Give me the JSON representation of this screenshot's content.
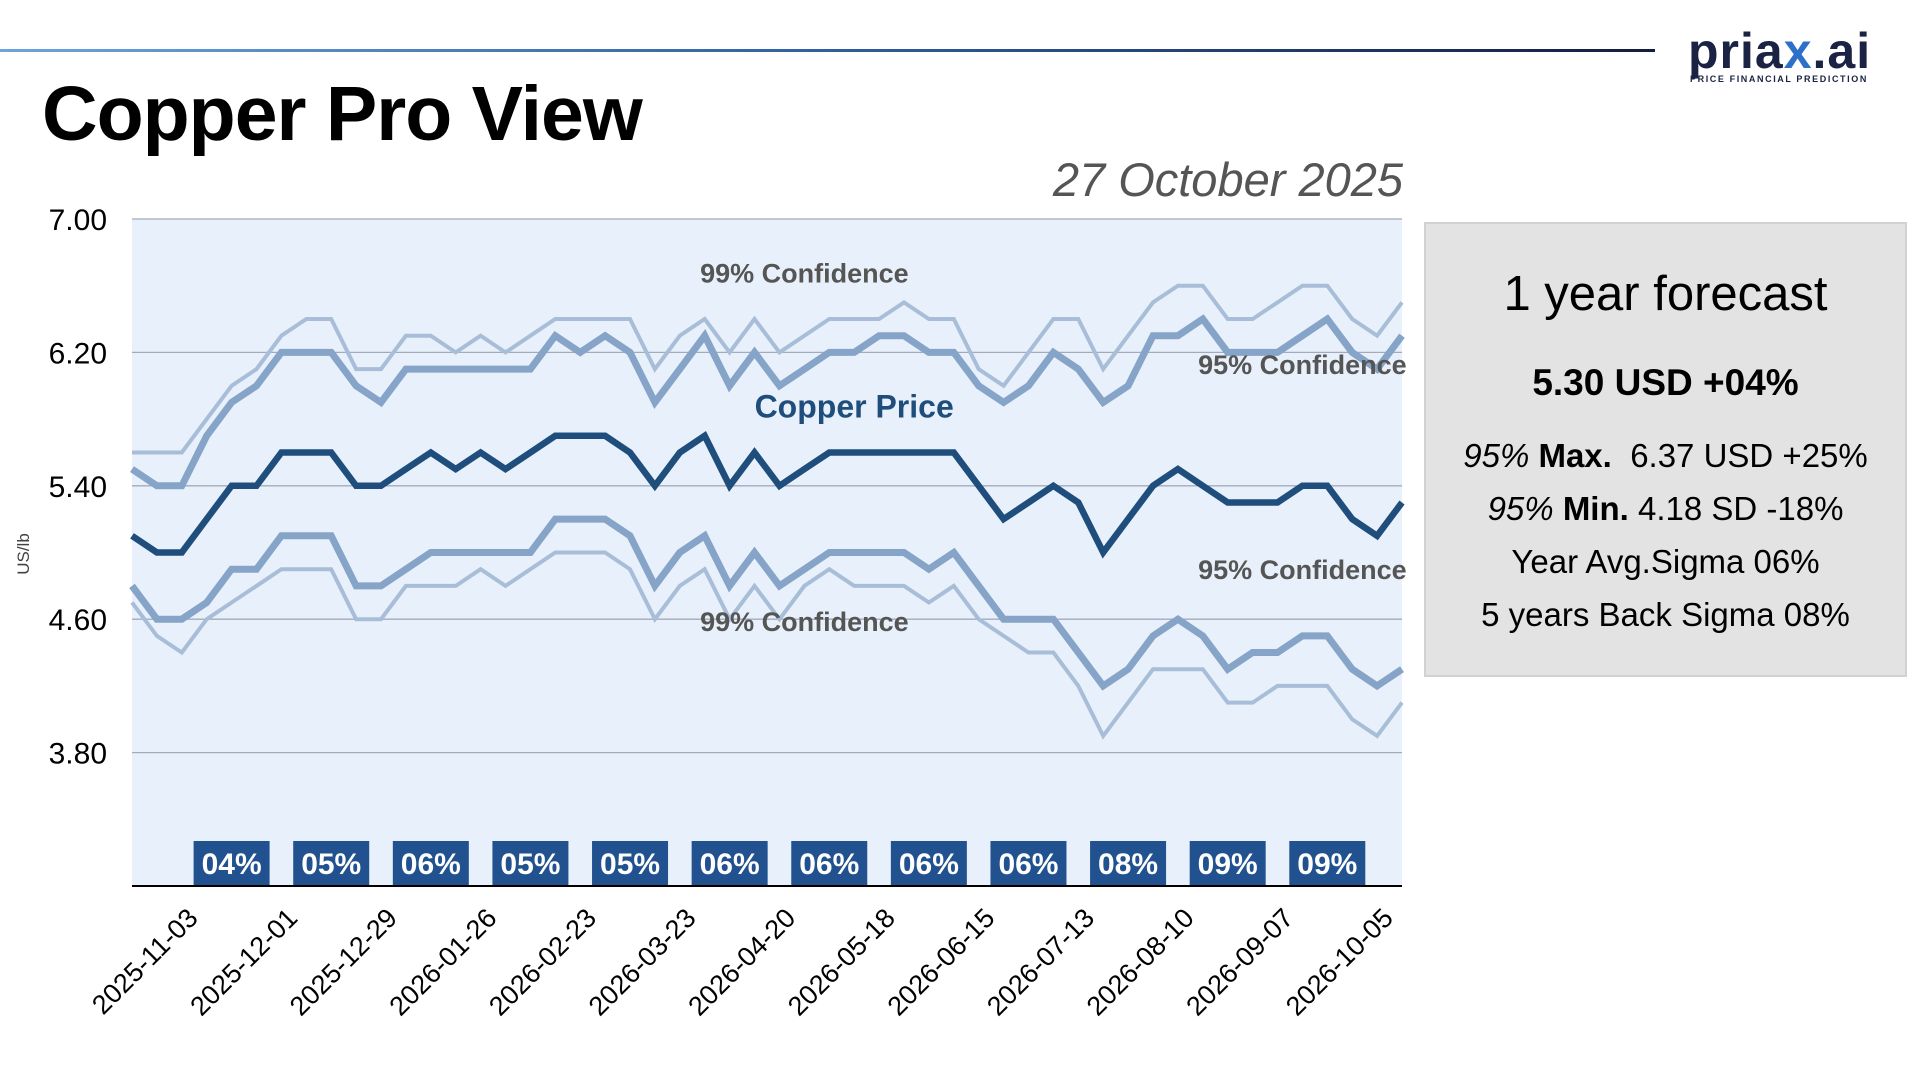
{
  "header": {
    "title": "Copper Pro View",
    "date": "27 October 2025",
    "logo_text": "priax.ai",
    "logo_tagline": "PRICE FINANCIAL PREDICTION"
  },
  "forecast_panel": {
    "heading": "1 year forecast",
    "main_value": "5.30 USD +04%",
    "max_prefix": "95%",
    "max_label": "Max.",
    "max_value": "6.37 USD +25%",
    "min_prefix": "95%",
    "min_label": "Min.",
    "min_value": "4.18 SD -18%",
    "year_avg_sigma": "Year Avg.Sigma 06%",
    "back_sigma": "5 years Back Sigma 08%"
  },
  "colors": {
    "price": "#1f4e7c",
    "conf95": "#86a4c8",
    "conf99": "#a8bed8",
    "plot_bg": "#e8f1fb",
    "grid": "#a3abbb",
    "badge": "#21528f"
  },
  "chart_data": {
    "type": "line",
    "title": "Copper Pro View",
    "ylabel": "US/lb",
    "xlabel": "",
    "ylim": [
      3.0,
      7.0
    ],
    "yticks": [
      "7.00",
      "6.20",
      "5.40",
      "4.60",
      "3.80"
    ],
    "grid": true,
    "x": [
      "2025-10-20",
      "2025-10-27",
      "2025-11-03",
      "2025-11-10",
      "2025-11-17",
      "2025-11-24",
      "2025-12-01",
      "2025-12-08",
      "2025-12-15",
      "2025-12-22",
      "2025-12-29",
      "2026-01-05",
      "2026-01-12",
      "2026-01-19",
      "2026-01-26",
      "2026-02-02",
      "2026-02-09",
      "2026-02-16",
      "2026-02-23",
      "2026-03-02",
      "2026-03-09",
      "2026-03-16",
      "2026-03-23",
      "2026-03-30",
      "2026-04-06",
      "2026-04-13",
      "2026-04-20",
      "2026-04-27",
      "2026-05-04",
      "2026-05-11",
      "2026-05-18",
      "2026-05-25",
      "2026-06-01",
      "2026-06-08",
      "2026-06-15",
      "2026-06-22",
      "2026-06-29",
      "2026-07-06",
      "2026-07-13",
      "2026-07-20",
      "2026-07-27",
      "2026-08-03",
      "2026-08-10",
      "2026-08-17",
      "2026-08-24",
      "2026-08-31",
      "2026-09-07",
      "2026-09-14",
      "2026-09-21",
      "2026-09-28",
      "2026-10-05",
      "2026-10-12"
    ],
    "xtick_labels": [
      "2025-11-03",
      "2025-12-01",
      "2025-12-29",
      "2026-01-26",
      "2026-02-23",
      "2026-03-23",
      "2026-04-20",
      "2026-05-18",
      "2026-06-15",
      "2026-07-13",
      "2026-08-10",
      "2026-09-07",
      "2026-10-05"
    ],
    "series": [
      {
        "name": "99% Confidence upper",
        "style": "conf99",
        "values": [
          5.6,
          5.6,
          5.6,
          5.8,
          6.0,
          6.1,
          6.3,
          6.4,
          6.4,
          6.1,
          6.1,
          6.3,
          6.3,
          6.2,
          6.3,
          6.2,
          6.3,
          6.4,
          6.4,
          6.4,
          6.4,
          6.1,
          6.3,
          6.4,
          6.2,
          6.4,
          6.2,
          6.3,
          6.4,
          6.4,
          6.4,
          6.5,
          6.4,
          6.4,
          6.1,
          6.0,
          6.2,
          6.4,
          6.4,
          6.1,
          6.3,
          6.5,
          6.6,
          6.6,
          6.4,
          6.4,
          6.5,
          6.6,
          6.6,
          6.4,
          6.3,
          6.5
        ]
      },
      {
        "name": "95% Confidence upper",
        "style": "conf95",
        "values": [
          5.5,
          5.4,
          5.4,
          5.7,
          5.9,
          6.0,
          6.2,
          6.2,
          6.2,
          6.0,
          5.9,
          6.1,
          6.1,
          6.1,
          6.1,
          6.1,
          6.1,
          6.3,
          6.2,
          6.3,
          6.2,
          5.9,
          6.1,
          6.3,
          6.0,
          6.2,
          6.0,
          6.1,
          6.2,
          6.2,
          6.3,
          6.3,
          6.2,
          6.2,
          6.0,
          5.9,
          6.0,
          6.2,
          6.1,
          5.9,
          6.0,
          6.3,
          6.3,
          6.4,
          6.2,
          6.2,
          6.2,
          6.3,
          6.4,
          6.2,
          6.1,
          6.3
        ]
      },
      {
        "name": "Copper Price",
        "style": "price",
        "values": [
          5.1,
          5.0,
          5.0,
          5.2,
          5.4,
          5.4,
          5.6,
          5.6,
          5.6,
          5.4,
          5.4,
          5.5,
          5.6,
          5.5,
          5.6,
          5.5,
          5.6,
          5.7,
          5.7,
          5.7,
          5.6,
          5.4,
          5.6,
          5.7,
          5.4,
          5.6,
          5.4,
          5.5,
          5.6,
          5.6,
          5.6,
          5.6,
          5.6,
          5.6,
          5.4,
          5.2,
          5.3,
          5.4,
          5.3,
          5.0,
          5.2,
          5.4,
          5.5,
          5.4,
          5.3,
          5.3,
          5.3,
          5.4,
          5.4,
          5.2,
          5.1,
          5.3
        ]
      },
      {
        "name": "95% Confidence lower",
        "style": "conf95",
        "values": [
          4.8,
          4.6,
          4.6,
          4.7,
          4.9,
          4.9,
          5.1,
          5.1,
          5.1,
          4.8,
          4.8,
          4.9,
          5.0,
          5.0,
          5.0,
          5.0,
          5.0,
          5.2,
          5.2,
          5.2,
          5.1,
          4.8,
          5.0,
          5.1,
          4.8,
          5.0,
          4.8,
          4.9,
          5.0,
          5.0,
          5.0,
          5.0,
          4.9,
          5.0,
          4.8,
          4.6,
          4.6,
          4.6,
          4.4,
          4.2,
          4.3,
          4.5,
          4.6,
          4.5,
          4.3,
          4.4,
          4.4,
          4.5,
          4.5,
          4.3,
          4.2,
          4.3
        ]
      },
      {
        "name": "99% Confidence lower",
        "style": "conf99",
        "values": [
          4.7,
          4.5,
          4.4,
          4.6,
          4.7,
          4.8,
          4.9,
          4.9,
          4.9,
          4.6,
          4.6,
          4.8,
          4.8,
          4.8,
          4.9,
          4.8,
          4.9,
          5.0,
          5.0,
          5.0,
          4.9,
          4.6,
          4.8,
          4.9,
          4.6,
          4.8,
          4.6,
          4.8,
          4.9,
          4.8,
          4.8,
          4.8,
          4.7,
          4.8,
          4.6,
          4.5,
          4.4,
          4.4,
          4.2,
          3.9,
          4.1,
          4.3,
          4.3,
          4.3,
          4.1,
          4.1,
          4.2,
          4.2,
          4.2,
          4.0,
          3.9,
          4.1
        ]
      }
    ],
    "annotations": [
      {
        "text": "99% Confidence",
        "x": "2026-04-27",
        "y": 6.62,
        "style": "label"
      },
      {
        "text": "95% Confidence",
        "x": "2026-09-14",
        "y": 6.07,
        "style": "label"
      },
      {
        "text": "Copper Price",
        "x": "2026-05-11",
        "y": 5.81,
        "style": "price"
      },
      {
        "text": "95% Confidence",
        "x": "2026-09-14",
        "y": 4.84,
        "style": "label"
      },
      {
        "text": "99% Confidence",
        "x": "2026-04-27",
        "y": 4.53,
        "style": "label"
      }
    ],
    "sigma_badges": [
      {
        "label": "04%",
        "x": "2025-11-17"
      },
      {
        "label": "05%",
        "x": "2025-12-15"
      },
      {
        "label": "06%",
        "x": "2026-01-12"
      },
      {
        "label": "05%",
        "x": "2026-02-09"
      },
      {
        "label": "05%",
        "x": "2026-03-09"
      },
      {
        "label": "06%",
        "x": "2026-04-06"
      },
      {
        "label": "06%",
        "x": "2026-05-04"
      },
      {
        "label": "06%",
        "x": "2026-06-01"
      },
      {
        "label": "06%",
        "x": "2026-06-29"
      },
      {
        "label": "08%",
        "x": "2026-07-27"
      },
      {
        "label": "09%",
        "x": "2026-08-24"
      },
      {
        "label": "09%",
        "x": "2026-09-21"
      }
    ]
  }
}
